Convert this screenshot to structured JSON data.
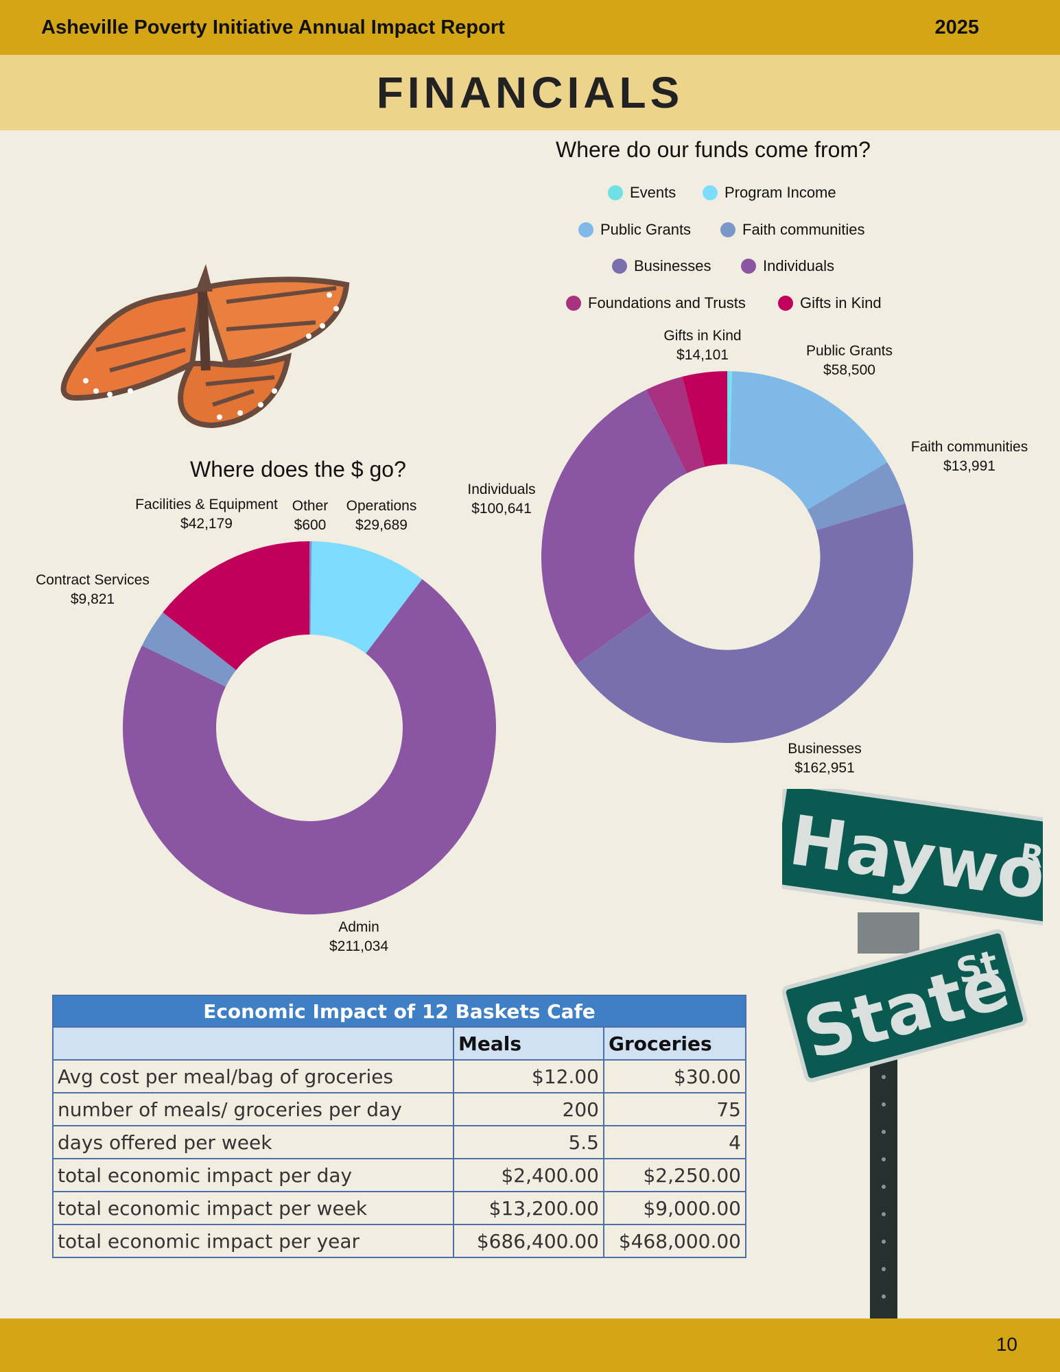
{
  "header": {
    "title": "Asheville Poverty Initiative Annual Impact Report",
    "year": "2025"
  },
  "banner": {
    "heading": "FINANCIALS"
  },
  "footer": {
    "page_number": "10"
  },
  "chart_data": [
    {
      "type": "pie",
      "title": "Where do our funds come from?",
      "legend_placement": "top",
      "hole_ratio": 0.5,
      "legend": [
        "Events",
        "Program Income",
        "Public Grants",
        "Faith communities",
        "Businesses",
        "Individuals",
        "Foundations and Trusts",
        "Gifts in Kind"
      ],
      "slices": [
        {
          "name": "Events",
          "value": 1000,
          "color": "#6fe0e6",
          "label": ""
        },
        {
          "name": "Program Income",
          "value": 500,
          "color": "#7ddcff",
          "label": ""
        },
        {
          "name": "Public Grants",
          "value": 58500,
          "color": "#7fb9e8",
          "label": "$58,500"
        },
        {
          "name": "Faith communities",
          "value": 13991,
          "color": "#7b96c8",
          "label": "$13,991"
        },
        {
          "name": "Businesses",
          "value": 162951,
          "color": "#7a6fae",
          "label": "$162,951"
        },
        {
          "name": "Individuals",
          "value": 100641,
          "color": "#8a56a3",
          "label": "$100,641"
        },
        {
          "name": "Foundations and Trusts",
          "value": 12000,
          "color": "#a8327f",
          "label": ""
        },
        {
          "name": "Gifts in Kind",
          "value": 14101,
          "color": "#c0005a",
          "label": "$14,101"
        }
      ]
    },
    {
      "type": "pie",
      "title": "Where does the $ go?",
      "hole_ratio": 0.5,
      "slices": [
        {
          "name": "Other",
          "value": 600,
          "color": "#7b96c8",
          "label": "$600"
        },
        {
          "name": "Operations",
          "value": 29689,
          "color": "#7ddcff",
          "label": "$29,689"
        },
        {
          "name": "Admin",
          "value": 211034,
          "color": "#8a56a3",
          "label": "$211,034"
        },
        {
          "name": "Contract Services",
          "value": 9821,
          "color": "#7b96c8",
          "label": "$9,821"
        },
        {
          "name": "Facilities & Equipment",
          "value": 42179,
          "color": "#c0005a",
          "label": "$42,179"
        }
      ]
    },
    {
      "type": "table",
      "title": "Economic Impact of 12 Baskets Cafe",
      "columns": [
        "",
        "Meals",
        "Groceries"
      ],
      "rows": [
        [
          "Avg cost per meal/bag of groceries",
          "$12.00",
          "$30.00"
        ],
        [
          "number of meals/ groceries per day",
          "200",
          "75"
        ],
        [
          "days offered per week",
          "5.5",
          "4"
        ],
        [
          "total economic impact per day",
          "$2,400.00",
          "$2,250.00"
        ],
        [
          "total economic impact per week",
          "$13,200.00",
          "$9,000.00"
        ],
        [
          "total economic impact per year",
          "$686,400.00",
          "$468,000.00"
        ]
      ]
    }
  ],
  "images": {
    "butterfly": "monarch-butterfly-photo",
    "sign": "street-sign-haywood-rd-state-st",
    "sign_text": {
      "street1": "Haywood",
      "suffix1": "Rd",
      "street2": "State",
      "suffix2": "St"
    }
  }
}
